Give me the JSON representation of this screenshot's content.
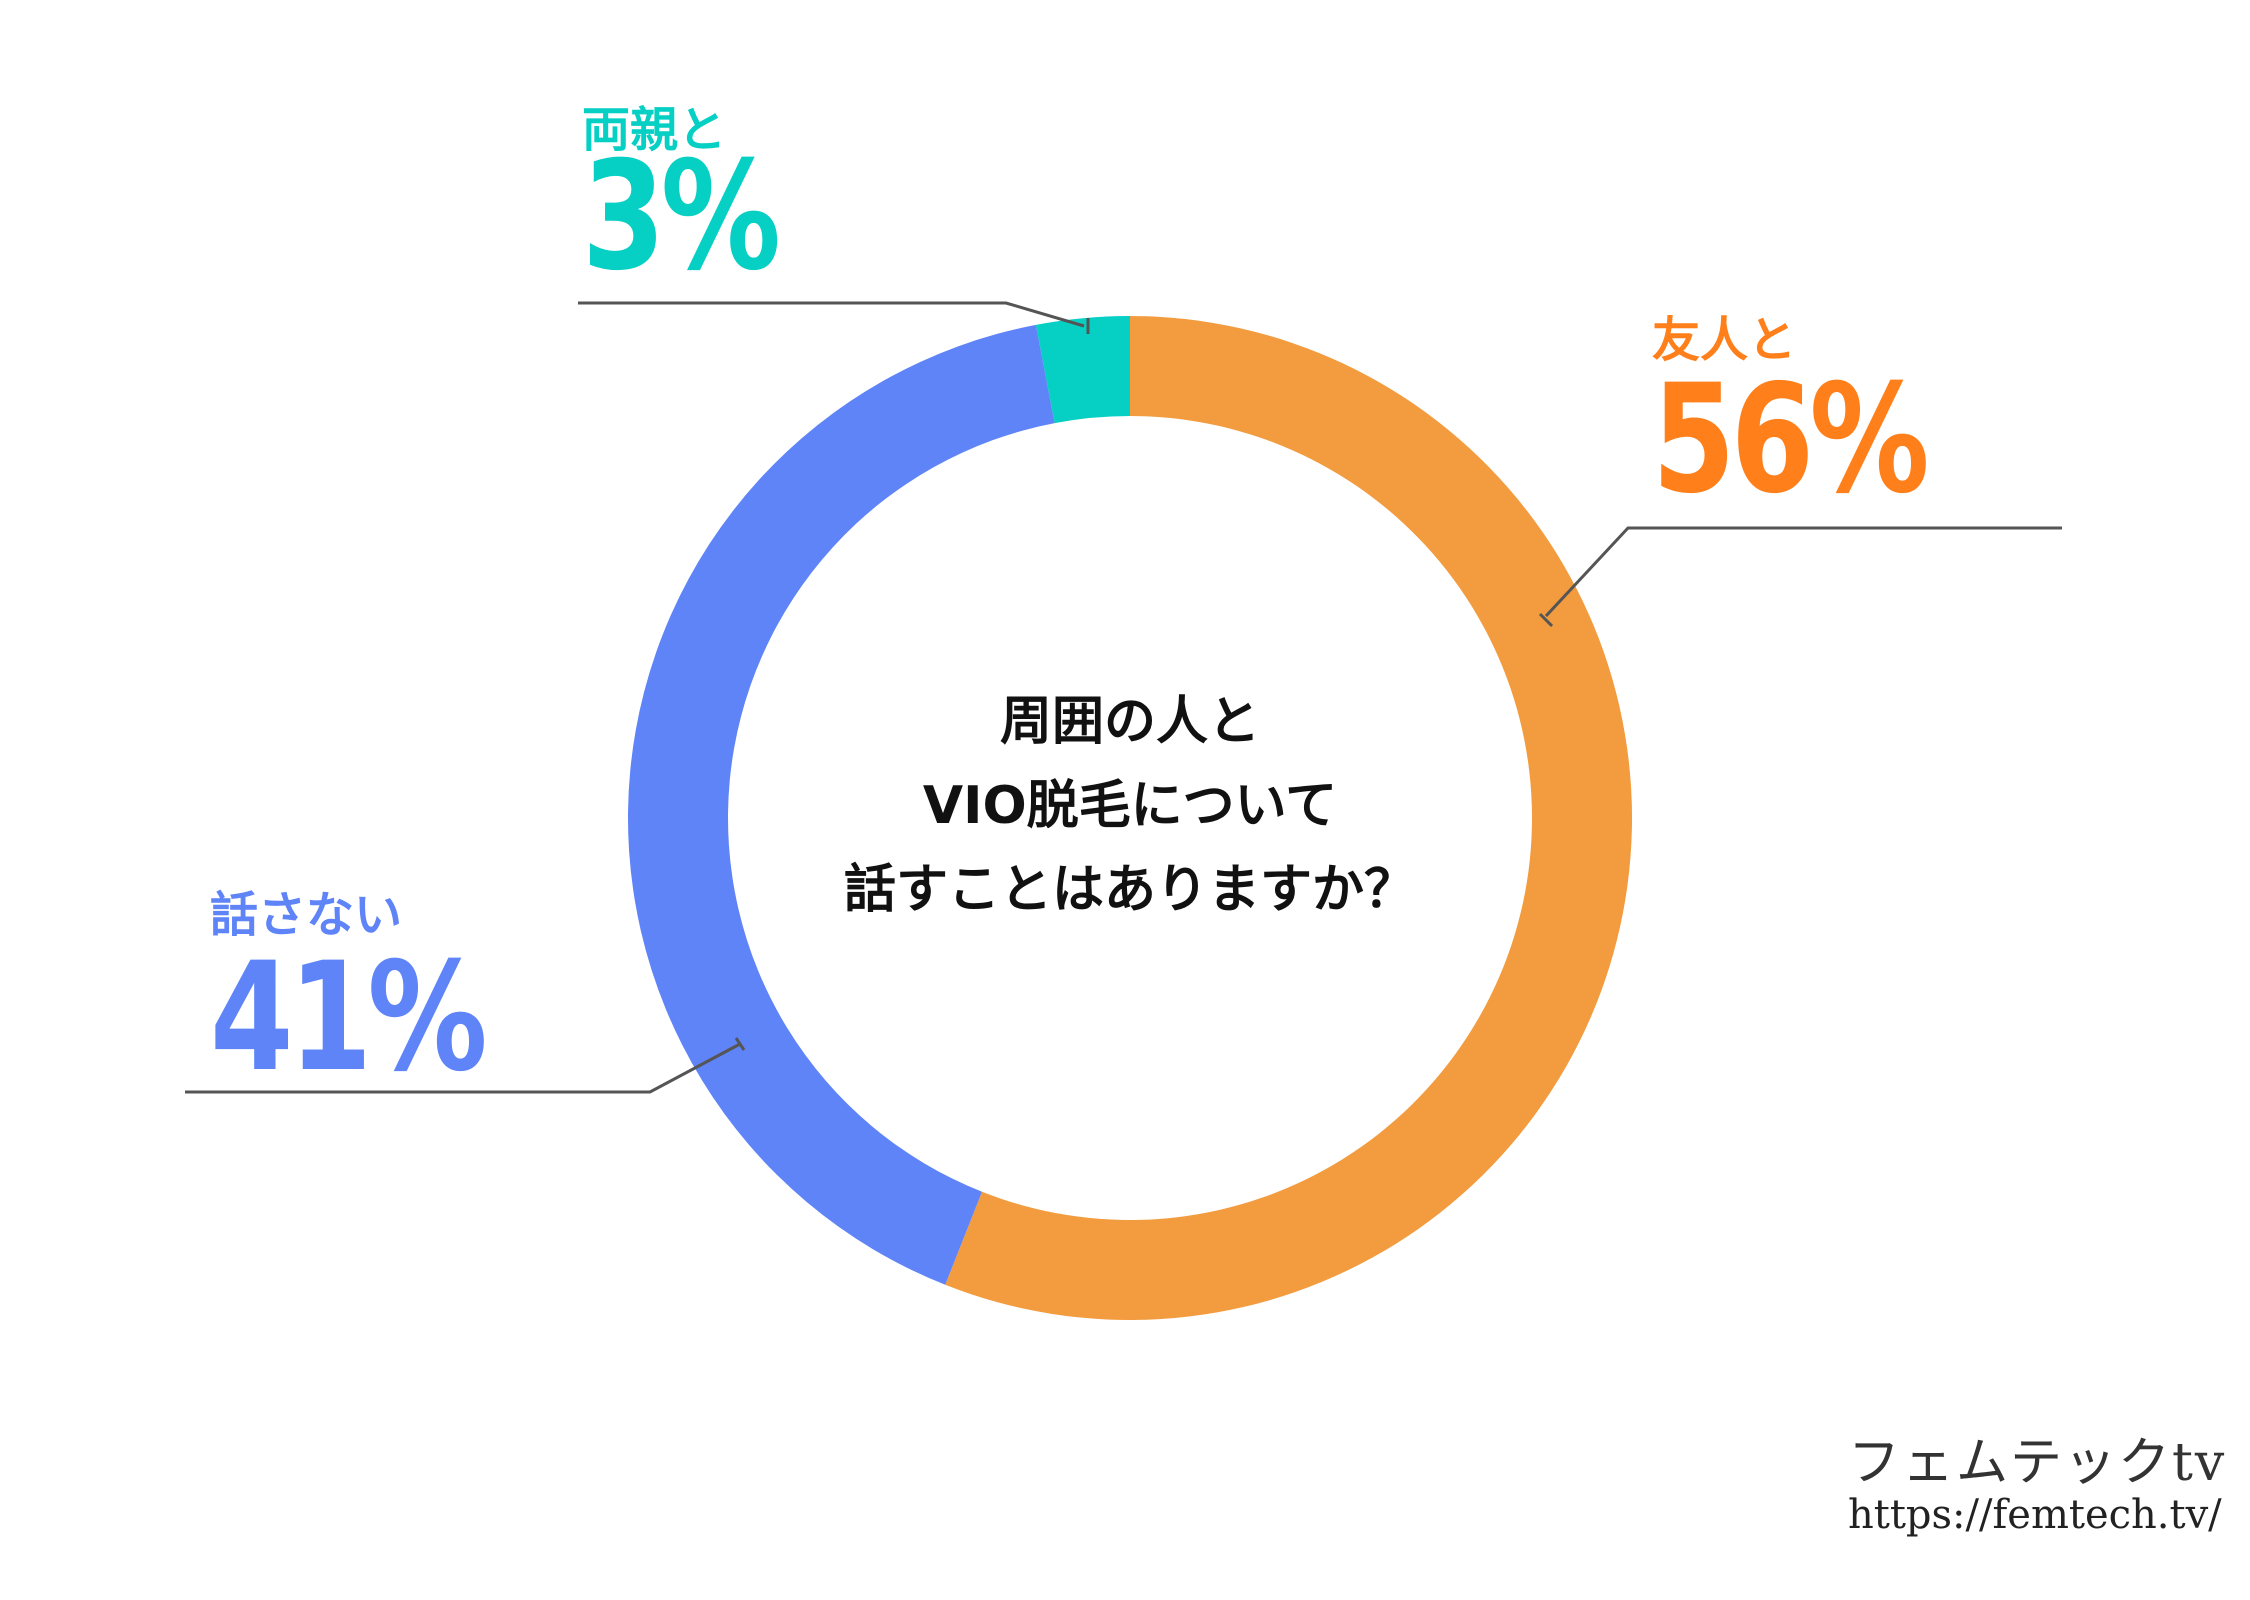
{
  "chart_data": {
    "type": "pie",
    "title": "",
    "center_text": [
      "周囲の人と",
      "VIO脱毛について",
      "話すことはありますか？"
    ],
    "slices": [
      {
        "label": "友人と",
        "value": 56,
        "display": "56%",
        "slice_color": "#F29C3F",
        "text_color": "#FF7F1A"
      },
      {
        "label": "話さない",
        "value": 41,
        "display": "41%",
        "slice_color": "#5E84F7",
        "text_color": "#5E84F7"
      },
      {
        "label": "両親と",
        "value": 3,
        "display": "3%",
        "slice_color": "#06CFC4",
        "text_color": "#06CFC4"
      }
    ]
  },
  "footer": {
    "logo_text": "フェムテックtv",
    "url": "https://femtech.tv/"
  },
  "colors": {
    "leader_line": "#555555",
    "center_text": "#111111"
  }
}
